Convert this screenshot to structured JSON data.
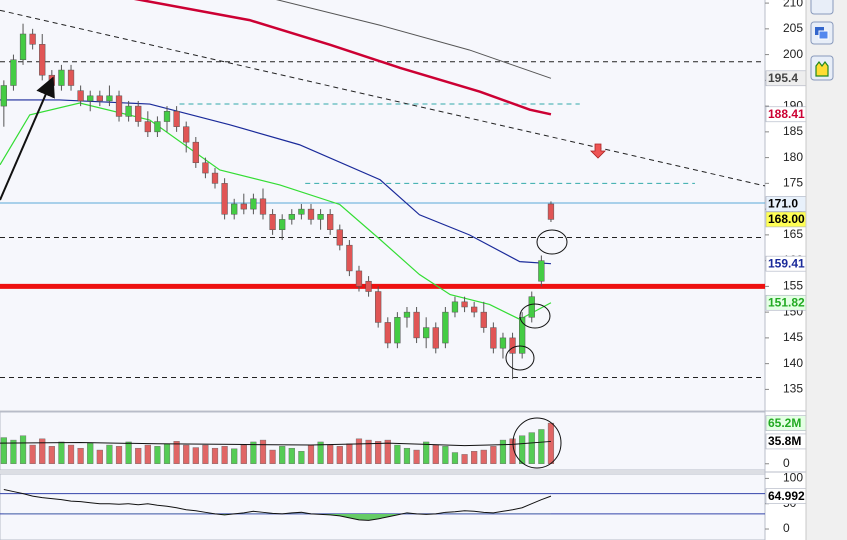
{
  "chart_data": [
    {
      "type": "candlestick",
      "xlim": [
        -0.4,
        79.3
      ],
      "ylim": [
        131,
        210.6
      ],
      "yticks": [
        135,
        140,
        145,
        150,
        155,
        160,
        165,
        170,
        175,
        180,
        185,
        190,
        195,
        200,
        205,
        210
      ],
      "up_color": "#44cc44",
      "down_color": "#e05555",
      "candles": {
        "open": [
          190,
          194,
          199,
          204,
          202,
          196,
          194,
          197,
          193,
          191,
          192,
          191,
          192,
          188,
          190,
          187,
          185,
          187,
          189,
          186,
          183,
          179,
          177,
          175,
          169,
          171,
          170,
          172,
          169,
          166,
          168,
          169,
          170,
          168,
          169,
          166,
          163,
          158,
          156,
          154,
          148,
          144,
          149,
          150,
          145,
          147,
          144,
          150,
          152,
          151,
          150,
          147,
          143,
          145,
          142,
          149,
          156,
          171
        ],
        "high": [
          195,
          200,
          206,
          205,
          204,
          197,
          198,
          198,
          194,
          193,
          193,
          194,
          193,
          191,
          191,
          189,
          188,
          190,
          190,
          187,
          184,
          180,
          178,
          176,
          172,
          173,
          173,
          174,
          170,
          169,
          170,
          171,
          171,
          170,
          170,
          167,
          164,
          159,
          157,
          155,
          149,
          150,
          151,
          151,
          149,
          148,
          151,
          153,
          153,
          152,
          152,
          148,
          146,
          146,
          150,
          154,
          161,
          171.5
        ],
        "low": [
          186,
          193,
          198,
          201,
          195,
          193,
          193,
          193,
          190,
          189,
          190,
          190,
          187,
          187,
          186,
          184,
          184,
          185,
          185,
          181,
          178,
          176,
          174,
          168,
          168,
          169,
          169,
          168,
          165,
          164,
          167,
          168,
          167,
          166,
          165,
          162,
          157,
          154,
          153,
          147,
          143,
          143,
          147,
          144,
          143,
          142,
          143,
          149,
          150,
          149,
          146,
          142,
          141,
          137,
          141,
          148,
          155,
          167.5
        ],
        "close": [
          194,
          199,
          204,
          202,
          196,
          194,
          197,
          194,
          191,
          192,
          191,
          192,
          188,
          190,
          187,
          185,
          187,
          189,
          186,
          183,
          179,
          177,
          175,
          169,
          171,
          170,
          172,
          169,
          166,
          168,
          169,
          170,
          168,
          169,
          166,
          163,
          158,
          155,
          154,
          148,
          144,
          149,
          150,
          145,
          147,
          143,
          150,
          152,
          151,
          150,
          147,
          143,
          145,
          142,
          149,
          153,
          160,
          168
        ]
      },
      "series": [
        {
          "color": "#cc0033",
          "width": 2.5,
          "x": [
            10,
            13.1,
            25.6,
            34,
            41.3,
            49.6,
            54.8,
            57
          ],
          "values": [
            212.1,
            211,
            206.7,
            201.9,
            197.4,
            192.8,
            189.3,
            188.41
          ]
        },
        {
          "color": "#555555",
          "width": 1,
          "x": [
            27.7,
            39.2,
            48.5,
            57
          ],
          "values": [
            211,
            205.7,
            200.9,
            195.4
          ]
        },
        {
          "color": "#1a2a9a",
          "width": 1.2,
          "x": [
            -0.4,
            5.8,
            15.2,
            23.5,
            30.8,
            39.2,
            43.3,
            48.5,
            53.75,
            57
          ],
          "values": [
            191.2,
            191.2,
            190.4,
            186.4,
            182.5,
            175.7,
            168.9,
            165.0,
            159.8,
            159.41
          ]
        },
        {
          "color": "#33dd33",
          "width": 1.2,
          "x": [
            -0.4,
            2.7,
            7.9,
            15.2,
            22.5,
            28.75,
            35,
            39.2,
            43.3,
            46.5,
            50.6,
            53.75,
            57
          ],
          "values": [
            178.6,
            188.3,
            190.6,
            187.3,
            177.6,
            174.7,
            170.9,
            164.1,
            157.3,
            153.4,
            151.5,
            148.6,
            151.82
          ]
        }
      ],
      "levels": [
        {
          "value": 155,
          "color": "#ee1111",
          "width": 5,
          "style": "solid"
        },
        {
          "value": 198.6,
          "color": "#222222",
          "width": 1,
          "style": "dashed"
        },
        {
          "value": 164.5,
          "color": "#222222",
          "width": 1,
          "style": "dashed"
        },
        {
          "value": 137.3,
          "color": "#222222",
          "width": 1,
          "style": "dashed"
        },
        {
          "value": 171.2,
          "color": "#5aaad8",
          "width": 1,
          "style": "solid"
        },
        {
          "value": 190.4,
          "color": "#33aaaa",
          "width": 1,
          "style": "dashed",
          "x": [
            18.3,
            60
          ]
        },
        {
          "value": 175,
          "color": "#33aaaa",
          "width": 1,
          "style": "dashed",
          "x": [
            31.4,
            72
          ]
        }
      ],
      "trendlines": [
        {
          "x": [
            -0.4,
            79.3
          ],
          "values": [
            208.6,
            174.5
          ],
          "color": "#222222",
          "style": "dashed"
        }
      ],
      "price_tags": [
        {
          "value": 195.4,
          "label": "195.4",
          "color": "#444444",
          "background": "#eeeeee"
        },
        {
          "value": 188.41,
          "label": "188.41",
          "color": "#cc0033",
          "background": "#ffffff"
        },
        {
          "value": 171.0,
          "label": "171.0",
          "color": "#000000",
          "background": "#e8f1fb"
        },
        {
          "value": 168,
          "label": "168.00",
          "color": "#000000",
          "background": "#ffff55"
        },
        {
          "value": 159.41,
          "label": "159.41",
          "color": "#1a2a9a",
          "background": "#ffffff"
        },
        {
          "value": 151.82,
          "label": "151.82",
          "color": "#22aa22",
          "background": "#e4ffe4"
        }
      ]
    },
    {
      "type": "bar",
      "xlim": [
        -0.4,
        79.3
      ],
      "ylim": [
        -10,
        83
      ],
      "yticks": [
        0
      ],
      "up_color": "#55cc55",
      "down_color": "#e06666",
      "values": [
        42,
        38,
        45,
        30,
        40,
        28,
        35,
        30,
        25,
        33,
        22,
        30,
        28,
        35,
        25,
        30,
        28,
        32,
        36,
        30,
        26,
        30,
        25,
        28,
        24,
        30,
        35,
        38,
        22,
        28,
        25,
        20,
        30,
        35,
        30,
        28,
        32,
        40,
        38,
        36,
        38,
        30,
        25,
        22,
        35,
        30,
        28,
        18,
        15,
        20,
        22,
        28,
        38,
        40,
        45,
        50,
        55,
        65.2
      ],
      "series": [
        {
          "color": "#111111",
          "width": 1,
          "x": [
            -0.4,
            8,
            16,
            24,
            32,
            40,
            48,
            53,
            57
          ],
          "values": [
            33,
            34,
            32,
            31,
            30,
            33,
            29,
            31,
            35.8
          ]
        }
      ],
      "price_tags": [
        {
          "value": 65.2,
          "label": "65.2M",
          "color": "#22aa22",
          "background": "#e4ffe4"
        },
        {
          "value": 35.8,
          "label": "35.8M",
          "color": "#000000",
          "background": "#ffffff"
        }
      ]
    },
    {
      "type": "line",
      "xlim": [
        -0.4,
        79.3
      ],
      "ylim": [
        -21.7,
        108.7
      ],
      "yticks": [
        0,
        50,
        100
      ],
      "bands": [
        30,
        70
      ],
      "band_color": "#3344aa",
      "fill_color": "#66cc66",
      "color": "#111111",
      "values": [
        78,
        74,
        70,
        65,
        62,
        60,
        58,
        55,
        54,
        52,
        50,
        50,
        49,
        50,
        48,
        50,
        47,
        45,
        42,
        38,
        36,
        33,
        30,
        28,
        30,
        32,
        35,
        33,
        31,
        30,
        32,
        33,
        30,
        29,
        28,
        26,
        22,
        18,
        17,
        20,
        24,
        28,
        32,
        30,
        29,
        30,
        33,
        34,
        36,
        35,
        33,
        32,
        35,
        38,
        42,
        50,
        58,
        64.992
      ],
      "price_tags": [
        {
          "value": 64.992,
          "label": "64.992",
          "color": "#000000",
          "background": "#ffffff"
        }
      ]
    }
  ]
}
